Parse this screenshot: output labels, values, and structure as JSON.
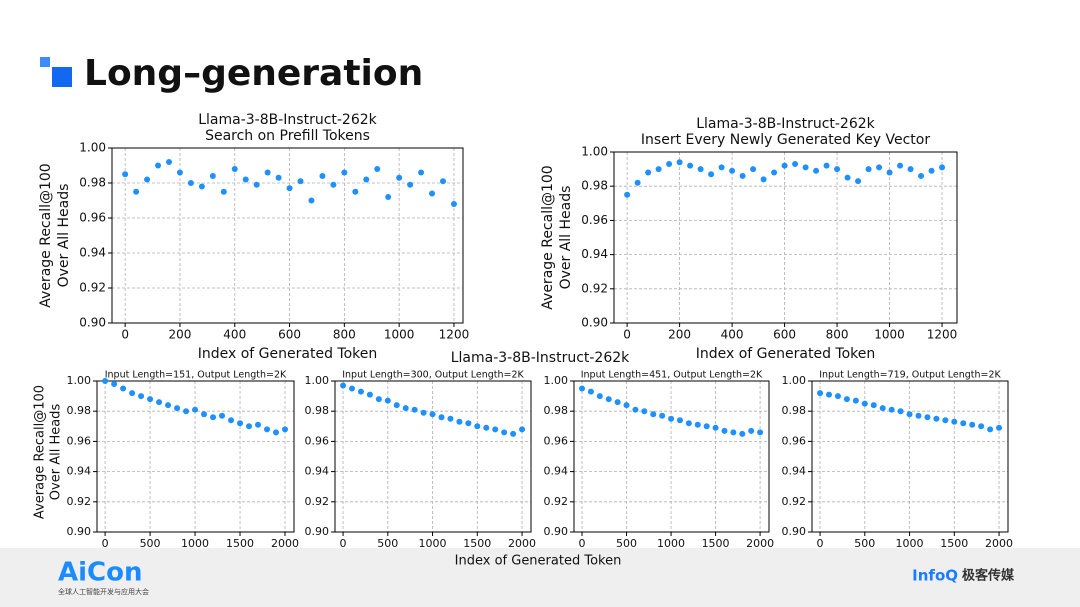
{
  "header": {
    "title": "Long–generation"
  },
  "bottom_group": {
    "title": "Llama-3-8B-Instruct-262k",
    "xlabel": "Index of Generated Token",
    "ylabel": [
      "Average Recall@100",
      "Over All Heads"
    ]
  },
  "footer": {
    "left_logo": "AiCon",
    "left_sub": "全球人工智能开发与应用大会",
    "right_logo": "InfoQ",
    "right_text": "极客传媒"
  },
  "chart_data": [
    {
      "type": "scatter",
      "title": [
        "Llama-3-8B-Instruct-262k",
        "Search on Prefill Tokens"
      ],
      "xlabel": "Index of Generated Token",
      "ylabel": [
        "Average Recall@100",
        "Over All Heads"
      ],
      "color": "#1e90ff",
      "grid": true,
      "xlim": [
        -48,
        1233
      ],
      "xticks": [
        0,
        200,
        400,
        600,
        800,
        1000,
        1200
      ],
      "ylim": [
        0.9,
        1.0
      ],
      "yticks": [
        {
          "value": 0.9,
          "label": "0.90"
        },
        0.92,
        0.94,
        0.96,
        0.98,
        {
          "value": 1.0,
          "label": "1.00"
        }
      ],
      "x": [
        0,
        40,
        80,
        120,
        160,
        200,
        240,
        280,
        320,
        360,
        400,
        440,
        480,
        520,
        560,
        600,
        640,
        680,
        720,
        760,
        800,
        840,
        880,
        920,
        960,
        1000,
        1040,
        1080,
        1120,
        1160,
        1200
      ],
      "values": [
        0.985,
        0.975,
        0.982,
        0.99,
        0.992,
        0.986,
        0.98,
        0.978,
        0.984,
        0.975,
        0.988,
        0.982,
        0.979,
        0.986,
        0.983,
        0.977,
        0.981,
        0.97,
        0.984,
        0.979,
        0.986,
        0.975,
        0.982,
        0.988,
        0.972,
        0.983,
        0.979,
        0.986,
        0.974,
        0.981,
        0.968
      ]
    },
    {
      "type": "scatter",
      "title": [
        "Llama-3-8B-Instruct-262k",
        "Insert Every Newly Generated Key Vector"
      ],
      "xlabel": "Index of Generated Token",
      "ylabel": [
        "Average Recall@100",
        "Over All Heads"
      ],
      "color": "#1e90ff",
      "grid": true,
      "xlim": [
        -50,
        1257
      ],
      "xticks": [
        0,
        200,
        400,
        600,
        800,
        1000,
        1200
      ],
      "ylim": [
        0.9,
        1.0
      ],
      "yticks": [
        {
          "value": 0.9,
          "label": "0.90"
        },
        0.92,
        0.94,
        0.96,
        0.98,
        {
          "value": 1.0,
          "label": "1.00"
        }
      ],
      "x": [
        0,
        40,
        80,
        120,
        160,
        200,
        240,
        280,
        320,
        360,
        400,
        440,
        480,
        520,
        560,
        600,
        640,
        680,
        720,
        760,
        800,
        840,
        880,
        920,
        960,
        1000,
        1040,
        1080,
        1120,
        1160,
        1200
      ],
      "values": [
        0.975,
        0.982,
        0.988,
        0.99,
        0.993,
        0.994,
        0.992,
        0.99,
        0.987,
        0.991,
        0.989,
        0.986,
        0.99,
        0.984,
        0.988,
        0.992,
        0.993,
        0.991,
        0.989,
        0.992,
        0.99,
        0.985,
        0.983,
        0.99,
        0.991,
        0.988,
        0.992,
        0.99,
        0.986,
        0.989,
        0.991
      ]
    },
    {
      "type": "scatter",
      "title": [
        "Input Length=151, Output Length=2K"
      ],
      "color": "#1e90ff",
      "grid": true,
      "xlim": [
        -90,
        2100
      ],
      "xticks": [
        0,
        500,
        1000,
        1500,
        2000
      ],
      "ylim": [
        0.9,
        1.0
      ],
      "yticks": [
        {
          "value": 0.9,
          "label": "0.90"
        },
        0.92,
        0.94,
        0.96,
        0.98,
        {
          "value": 1.0,
          "label": "1.00"
        }
      ],
      "x": [
        0,
        100,
        200,
        300,
        400,
        500,
        600,
        700,
        800,
        900,
        1000,
        1100,
        1200,
        1300,
        1400,
        1500,
        1600,
        1700,
        1800,
        1900,
        2000
      ],
      "values": [
        1.0,
        0.998,
        0.995,
        0.992,
        0.99,
        0.988,
        0.986,
        0.984,
        0.982,
        0.98,
        0.981,
        0.978,
        0.976,
        0.977,
        0.974,
        0.972,
        0.97,
        0.971,
        0.968,
        0.966,
        0.968
      ]
    },
    {
      "type": "scatter",
      "title": [
        "Input Length=300, Output Length=2K"
      ],
      "color": "#1e90ff",
      "grid": true,
      "xlim": [
        -90,
        2100
      ],
      "xticks": [
        0,
        500,
        1000,
        1500,
        2000
      ],
      "ylim": [
        0.9,
        1.0
      ],
      "yticks": [
        {
          "value": 0.9,
          "label": "0.90"
        },
        0.92,
        0.94,
        0.96,
        0.98,
        {
          "value": 1.0,
          "label": "1.00"
        }
      ],
      "x": [
        0,
        100,
        200,
        300,
        400,
        500,
        600,
        700,
        800,
        900,
        1000,
        1100,
        1200,
        1300,
        1400,
        1500,
        1600,
        1700,
        1800,
        1900,
        2000
      ],
      "values": [
        0.997,
        0.995,
        0.993,
        0.991,
        0.988,
        0.987,
        0.984,
        0.982,
        0.981,
        0.979,
        0.978,
        0.976,
        0.975,
        0.973,
        0.972,
        0.97,
        0.969,
        0.968,
        0.966,
        0.965,
        0.968
      ]
    },
    {
      "type": "scatter",
      "title": [
        "Input Length=451, Output Length=2K"
      ],
      "color": "#1e90ff",
      "grid": true,
      "xlim": [
        -90,
        2100
      ],
      "xticks": [
        0,
        500,
        1000,
        1500,
        2000
      ],
      "ylim": [
        0.9,
        1.0
      ],
      "yticks": [
        {
          "value": 0.9,
          "label": "0.90"
        },
        0.92,
        0.94,
        0.96,
        0.98,
        {
          "value": 1.0,
          "label": "1.00"
        }
      ],
      "x": [
        0,
        100,
        200,
        300,
        400,
        500,
        600,
        700,
        800,
        900,
        1000,
        1100,
        1200,
        1300,
        1400,
        1500,
        1600,
        1700,
        1800,
        1900,
        2000
      ],
      "values": [
        0.995,
        0.993,
        0.99,
        0.988,
        0.986,
        0.984,
        0.981,
        0.98,
        0.978,
        0.977,
        0.975,
        0.974,
        0.972,
        0.971,
        0.97,
        0.969,
        0.967,
        0.966,
        0.965,
        0.967,
        0.966
      ]
    },
    {
      "type": "scatter",
      "title": [
        "Input Length=719, Output Length=2K"
      ],
      "color": "#1e90ff",
      "grid": true,
      "xlim": [
        -90,
        2100
      ],
      "xticks": [
        0,
        500,
        1000,
        1500,
        2000
      ],
      "ylim": [
        0.9,
        1.0
      ],
      "yticks": [
        {
          "value": 0.9,
          "label": "0.90"
        },
        0.92,
        0.94,
        0.96,
        0.98,
        {
          "value": 1.0,
          "label": "1.00"
        }
      ],
      "x": [
        0,
        100,
        200,
        300,
        400,
        500,
        600,
        700,
        800,
        900,
        1000,
        1100,
        1200,
        1300,
        1400,
        1500,
        1600,
        1700,
        1800,
        1900,
        2000
      ],
      "values": [
        0.992,
        0.991,
        0.99,
        0.988,
        0.987,
        0.985,
        0.984,
        0.982,
        0.981,
        0.98,
        0.978,
        0.977,
        0.976,
        0.975,
        0.974,
        0.973,
        0.972,
        0.971,
        0.97,
        0.968,
        0.969
      ]
    }
  ]
}
